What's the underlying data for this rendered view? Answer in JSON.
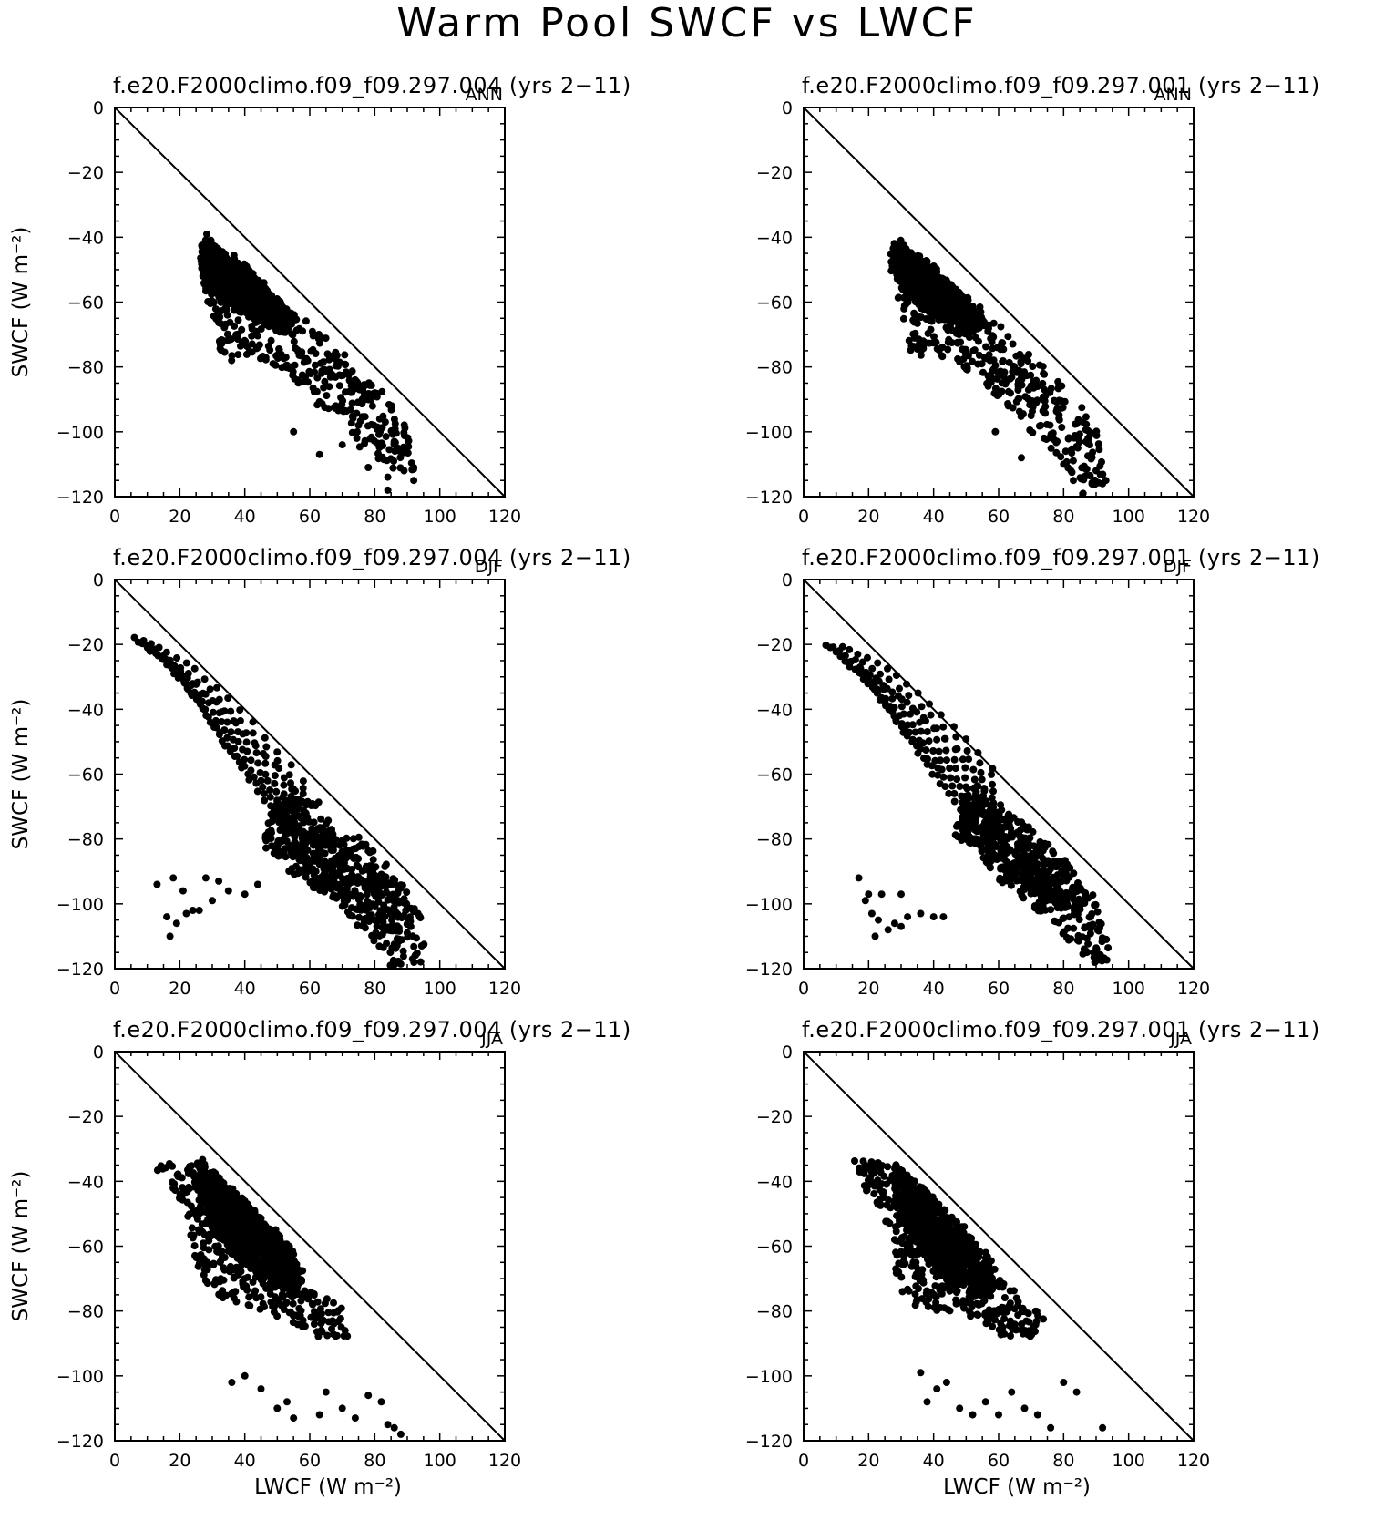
{
  "page_title": "Warm Pool SWCF vs LWCF",
  "colors": {
    "marker": "#000000",
    "axes": "#000000",
    "background": "#ffffff"
  },
  "chart_data": [
    {
      "type": "scatter",
      "title": "f.e20.F2000climo.f09_f09.297.004 (yrs 2−11)",
      "season": "ANN",
      "xlabel": "",
      "ylabel": "SWCF (W m⁻²)",
      "xlim": [
        0,
        120
      ],
      "ylim": [
        -120,
        0
      ],
      "xticks": [
        0,
        20,
        40,
        60,
        80,
        100,
        120
      ],
      "yticks": [
        0,
        -20,
        -40,
        -60,
        -80,
        -100,
        -120
      ],
      "reference_line": [
        [
          0,
          0
        ],
        [
          120,
          -120
        ]
      ],
      "shape": "ann",
      "envelope": [
        [
          27,
          -38
        ],
        [
          30,
          -40
        ],
        [
          35,
          -44
        ],
        [
          40,
          -48
        ],
        [
          45,
          -53
        ],
        [
          50,
          -58
        ],
        [
          55,
          -63
        ],
        [
          60,
          -66
        ],
        [
          66,
          -72
        ],
        [
          72,
          -77
        ],
        [
          78,
          -83
        ],
        [
          84,
          -89
        ],
        [
          90,
          -98
        ],
        [
          93,
          -112
        ],
        [
          88,
          -112
        ],
        [
          82,
          -110
        ],
        [
          76,
          -106
        ],
        [
          70,
          -100
        ],
        [
          64,
          -94
        ],
        [
          58,
          -86
        ],
        [
          52,
          -82
        ],
        [
          46,
          -78
        ],
        [
          40,
          -76
        ],
        [
          34,
          -80
        ],
        [
          31,
          -70
        ],
        [
          28,
          -60
        ],
        [
          26,
          -52
        ],
        [
          25,
          -44
        ]
      ],
      "core": [
        [
          27,
          -40
        ],
        [
          38,
          -48
        ],
        [
          48,
          -57
        ],
        [
          56,
          -65
        ],
        [
          52,
          -70
        ],
        [
          44,
          -66
        ],
        [
          36,
          -62
        ],
        [
          29,
          -56
        ],
        [
          26,
          -47
        ]
      ],
      "tail": [
        [
          55,
          -100
        ],
        [
          63,
          -107
        ],
        [
          68,
          -92
        ],
        [
          75,
          -98
        ],
        [
          78,
          -111
        ],
        [
          84,
          -114
        ],
        [
          84,
          -118
        ],
        [
          87,
          -105
        ],
        [
          89,
          -112
        ],
        [
          92,
          -115
        ],
        [
          92,
          -111
        ],
        [
          80,
          -88
        ],
        [
          86,
          -103
        ],
        [
          70,
          -104
        ],
        [
          73,
          -86
        ]
      ]
    },
    {
      "type": "scatter",
      "title": "f.e20.F2000climo.f09_f09.297.001 (yrs 2−11)",
      "season": "ANN",
      "xlabel": "",
      "ylabel": "",
      "xlim": [
        0,
        120
      ],
      "ylim": [
        -120,
        0
      ],
      "xticks": [
        0,
        20,
        40,
        60,
        80,
        100,
        120
      ],
      "yticks": [
        0,
        -20,
        -40,
        -60,
        -80,
        -100,
        -120
      ],
      "reference_line": [
        [
          0,
          0
        ],
        [
          120,
          -120
        ]
      ],
      "shape": "ann",
      "envelope": [
        [
          27,
          -42
        ],
        [
          30,
          -40
        ],
        [
          35,
          -45
        ],
        [
          40,
          -48
        ],
        [
          45,
          -53
        ],
        [
          50,
          -58
        ],
        [
          55,
          -62
        ],
        [
          60,
          -67
        ],
        [
          66,
          -72
        ],
        [
          72,
          -78
        ],
        [
          78,
          -84
        ],
        [
          84,
          -90
        ],
        [
          90,
          -99
        ],
        [
          93,
          -114
        ],
        [
          88,
          -118
        ],
        [
          82,
          -112
        ],
        [
          76,
          -106
        ],
        [
          70,
          -100
        ],
        [
          64,
          -93
        ],
        [
          58,
          -88
        ],
        [
          52,
          -82
        ],
        [
          46,
          -78
        ],
        [
          40,
          -76
        ],
        [
          33,
          -78
        ],
        [
          31,
          -70
        ],
        [
          29,
          -60
        ],
        [
          27,
          -52
        ],
        [
          26,
          -45
        ]
      ],
      "core": [
        [
          28,
          -41
        ],
        [
          38,
          -48
        ],
        [
          48,
          -57
        ],
        [
          56,
          -66
        ],
        [
          52,
          -70
        ],
        [
          44,
          -66
        ],
        [
          36,
          -62
        ],
        [
          30,
          -56
        ],
        [
          27,
          -47
        ]
      ],
      "tail": [
        [
          59,
          -100
        ],
        [
          67,
          -108
        ],
        [
          72,
          -86
        ],
        [
          78,
          -93
        ],
        [
          80,
          -110
        ],
        [
          83,
          -115
        ],
        [
          86,
          -119
        ],
        [
          88,
          -104
        ],
        [
          90,
          -112
        ],
        [
          93,
          -115
        ],
        [
          92,
          -116
        ],
        [
          86,
          -97
        ],
        [
          74,
          -102
        ],
        [
          70,
          -95
        ],
        [
          63,
          -92
        ]
      ]
    },
    {
      "type": "scatter",
      "title": "f.e20.F2000climo.f09_f09.297.004 (yrs 2−11)",
      "season": "DJF",
      "xlabel": "",
      "ylabel": "SWCF (W m⁻²)",
      "xlim": [
        0,
        120
      ],
      "ylim": [
        -120,
        0
      ],
      "xticks": [
        0,
        20,
        40,
        60,
        80,
        100,
        120
      ],
      "yticks": [
        0,
        -20,
        -40,
        -60,
        -80,
        -100,
        -120
      ],
      "reference_line": [
        [
          0,
          0
        ],
        [
          120,
          -120
        ]
      ],
      "shape": "fan",
      "fan": {
        "x_lo": 6,
        "x_hi": 20,
        "y_top_lo": -18,
        "y_top_hi": -40,
        "y_bot_lo": -28,
        "y_bot_hi": -82,
        "x_end": 58,
        "y_end_top": -62,
        "y_end_bot": -84
      },
      "envelope": [
        [
          55,
          -62
        ],
        [
          62,
          -68
        ],
        [
          70,
          -75
        ],
        [
          78,
          -82
        ],
        [
          84,
          -88
        ],
        [
          90,
          -96
        ],
        [
          95,
          -106
        ],
        [
          96,
          -120
        ],
        [
          85,
          -120
        ],
        [
          80,
          -112
        ],
        [
          72,
          -104
        ],
        [
          64,
          -98
        ],
        [
          56,
          -92
        ],
        [
          48,
          -86
        ],
        [
          44,
          -82
        ],
        [
          48,
          -72
        ]
      ],
      "core": [
        [
          50,
          -66
        ],
        [
          62,
          -74
        ],
        [
          74,
          -84
        ],
        [
          86,
          -94
        ],
        [
          92,
          -104
        ],
        [
          86,
          -110
        ],
        [
          76,
          -104
        ],
        [
          64,
          -96
        ],
        [
          54,
          -88
        ],
        [
          46,
          -80
        ]
      ],
      "tail": [
        [
          13,
          -94
        ],
        [
          16,
          -104
        ],
        [
          17,
          -110
        ],
        [
          19,
          -106
        ],
        [
          22,
          -103
        ],
        [
          24,
          -102
        ],
        [
          26,
          -102
        ],
        [
          30,
          -99
        ],
        [
          32,
          -93
        ],
        [
          35,
          -96
        ],
        [
          40,
          -97
        ],
        [
          44,
          -94
        ],
        [
          18,
          -92
        ],
        [
          21,
          -96
        ],
        [
          28,
          -92
        ]
      ]
    },
    {
      "type": "scatter",
      "title": "f.e20.F2000climo.f09_f09.297.001 (yrs 2−11)",
      "season": "DJF",
      "xlabel": "",
      "ylabel": "",
      "xlim": [
        0,
        120
      ],
      "ylim": [
        -120,
        0
      ],
      "xticks": [
        0,
        20,
        40,
        60,
        80,
        100,
        120
      ],
      "yticks": [
        0,
        -20,
        -40,
        -60,
        -80,
        -100,
        -120
      ],
      "reference_line": [
        [
          0,
          0
        ],
        [
          120,
          -120
        ]
      ],
      "shape": "fan",
      "fan": {
        "x_lo": 7,
        "x_hi": 22,
        "y_top_lo": -20,
        "y_top_hi": -42,
        "y_bot_lo": -33,
        "y_bot_hi": -84,
        "x_end": 58,
        "y_end_top": -58,
        "y_end_bot": -82
      },
      "envelope": [
        [
          52,
          -62
        ],
        [
          60,
          -68
        ],
        [
          68,
          -75
        ],
        [
          76,
          -82
        ],
        [
          82,
          -88
        ],
        [
          88,
          -94
        ],
        [
          95,
          -117
        ],
        [
          90,
          -119
        ],
        [
          84,
          -114
        ],
        [
          76,
          -106
        ],
        [
          68,
          -99
        ],
        [
          62,
          -95
        ],
        [
          56,
          -88
        ],
        [
          50,
          -82
        ],
        [
          45,
          -78
        ],
        [
          48,
          -70
        ]
      ],
      "core": [
        [
          50,
          -64
        ],
        [
          60,
          -72
        ],
        [
          72,
          -82
        ],
        [
          82,
          -90
        ],
        [
          88,
          -98
        ],
        [
          84,
          -104
        ],
        [
          76,
          -100
        ],
        [
          64,
          -92
        ],
        [
          56,
          -86
        ],
        [
          48,
          -78
        ]
      ],
      "tail": [
        [
          17,
          -92
        ],
        [
          20,
          -97
        ],
        [
          21,
          -103
        ],
        [
          22,
          -110
        ],
        [
          23,
          -105
        ],
        [
          26,
          -108
        ],
        [
          28,
          -106
        ],
        [
          30,
          -107
        ],
        [
          32,
          -104
        ],
        [
          36,
          -103
        ],
        [
          40,
          -104
        ],
        [
          43,
          -104
        ],
        [
          19,
          -99
        ],
        [
          24,
          -97
        ],
        [
          30,
          -97
        ]
      ]
    },
    {
      "type": "scatter",
      "title": "f.e20.F2000climo.f09_f09.297.004 (yrs 2−11)",
      "season": "JJA",
      "xlabel": "LWCF (W m⁻²)",
      "ylabel": "SWCF (W m⁻²)",
      "xlim": [
        0,
        120
      ],
      "ylim": [
        -120,
        0
      ],
      "xticks": [
        0,
        20,
        40,
        60,
        80,
        100,
        120
      ],
      "yticks": [
        0,
        -20,
        -40,
        -60,
        -80,
        -100,
        -120
      ],
      "reference_line": [
        [
          0,
          0
        ],
        [
          120,
          -120
        ]
      ],
      "shape": "ann",
      "envelope": [
        [
          12,
          -34
        ],
        [
          16,
          -33
        ],
        [
          22,
          -36
        ],
        [
          27,
          -33
        ],
        [
          32,
          -38
        ],
        [
          38,
          -44
        ],
        [
          44,
          -50
        ],
        [
          50,
          -55
        ],
        [
          56,
          -62
        ],
        [
          58,
          -68
        ],
        [
          60,
          -74
        ],
        [
          70,
          -78
        ],
        [
          72,
          -88
        ],
        [
          62,
          -88
        ],
        [
          54,
          -84
        ],
        [
          46,
          -80
        ],
        [
          40,
          -78
        ],
        [
          33,
          -76
        ],
        [
          27,
          -72
        ],
        [
          24,
          -62
        ],
        [
          22,
          -48
        ],
        [
          17,
          -42
        ],
        [
          12,
          -36
        ]
      ],
      "core": [
        [
          26,
          -34
        ],
        [
          36,
          -42
        ],
        [
          46,
          -52
        ],
        [
          54,
          -60
        ],
        [
          58,
          -70
        ],
        [
          56,
          -76
        ],
        [
          48,
          -72
        ],
        [
          38,
          -64
        ],
        [
          30,
          -56
        ],
        [
          26,
          -44
        ]
      ],
      "tail": [
        [
          36,
          -102
        ],
        [
          40,
          -100
        ],
        [
          45,
          -104
        ],
        [
          50,
          -110
        ],
        [
          53,
          -108
        ],
        [
          55,
          -113
        ],
        [
          63,
          -112
        ],
        [
          65,
          -105
        ],
        [
          70,
          -110
        ],
        [
          74,
          -113
        ],
        [
          78,
          -106
        ],
        [
          82,
          -108
        ],
        [
          84,
          -115
        ],
        [
          86,
          -116
        ],
        [
          88,
          -118
        ]
      ]
    },
    {
      "type": "scatter",
      "title": "f.e20.F2000climo.f09_f09.297.001 (yrs 2−11)",
      "season": "JJA",
      "xlabel": "LWCF (W m⁻²)",
      "ylabel": "",
      "xlim": [
        0,
        120
      ],
      "ylim": [
        -120,
        0
      ],
      "xticks": [
        0,
        20,
        40,
        60,
        80,
        100,
        120
      ],
      "yticks": [
        0,
        -20,
        -40,
        -60,
        -80,
        -100,
        -120
      ],
      "reference_line": [
        [
          0,
          0
        ],
        [
          120,
          -120
        ]
      ],
      "shape": "ann",
      "envelope": [
        [
          14,
          -32
        ],
        [
          20,
          -34
        ],
        [
          28,
          -34
        ],
        [
          34,
          -39
        ],
        [
          40,
          -45
        ],
        [
          46,
          -50
        ],
        [
          52,
          -56
        ],
        [
          57,
          -62
        ],
        [
          60,
          -70
        ],
        [
          68,
          -76
        ],
        [
          74,
          -82
        ],
        [
          73,
          -88
        ],
        [
          62,
          -88
        ],
        [
          54,
          -84
        ],
        [
          46,
          -80
        ],
        [
          40,
          -80
        ],
        [
          33,
          -78
        ],
        [
          29,
          -72
        ],
        [
          27,
          -62
        ],
        [
          25,
          -52
        ],
        [
          20,
          -44
        ],
        [
          15,
          -36
        ]
      ],
      "core": [
        [
          28,
          -35
        ],
        [
          38,
          -43
        ],
        [
          48,
          -53
        ],
        [
          55,
          -62
        ],
        [
          60,
          -72
        ],
        [
          56,
          -76
        ],
        [
          48,
          -72
        ],
        [
          40,
          -66
        ],
        [
          32,
          -58
        ],
        [
          28,
          -46
        ]
      ],
      "tail": [
        [
          36,
          -99
        ],
        [
          38,
          -108
        ],
        [
          41,
          -104
        ],
        [
          44,
          -102
        ],
        [
          48,
          -110
        ],
        [
          52,
          -112
        ],
        [
          56,
          -108
        ],
        [
          60,
          -112
        ],
        [
          64,
          -105
        ],
        [
          68,
          -110
        ],
        [
          72,
          -112
        ],
        [
          76,
          -116
        ],
        [
          80,
          -102
        ],
        [
          84,
          -105
        ],
        [
          92,
          -116
        ]
      ]
    }
  ]
}
